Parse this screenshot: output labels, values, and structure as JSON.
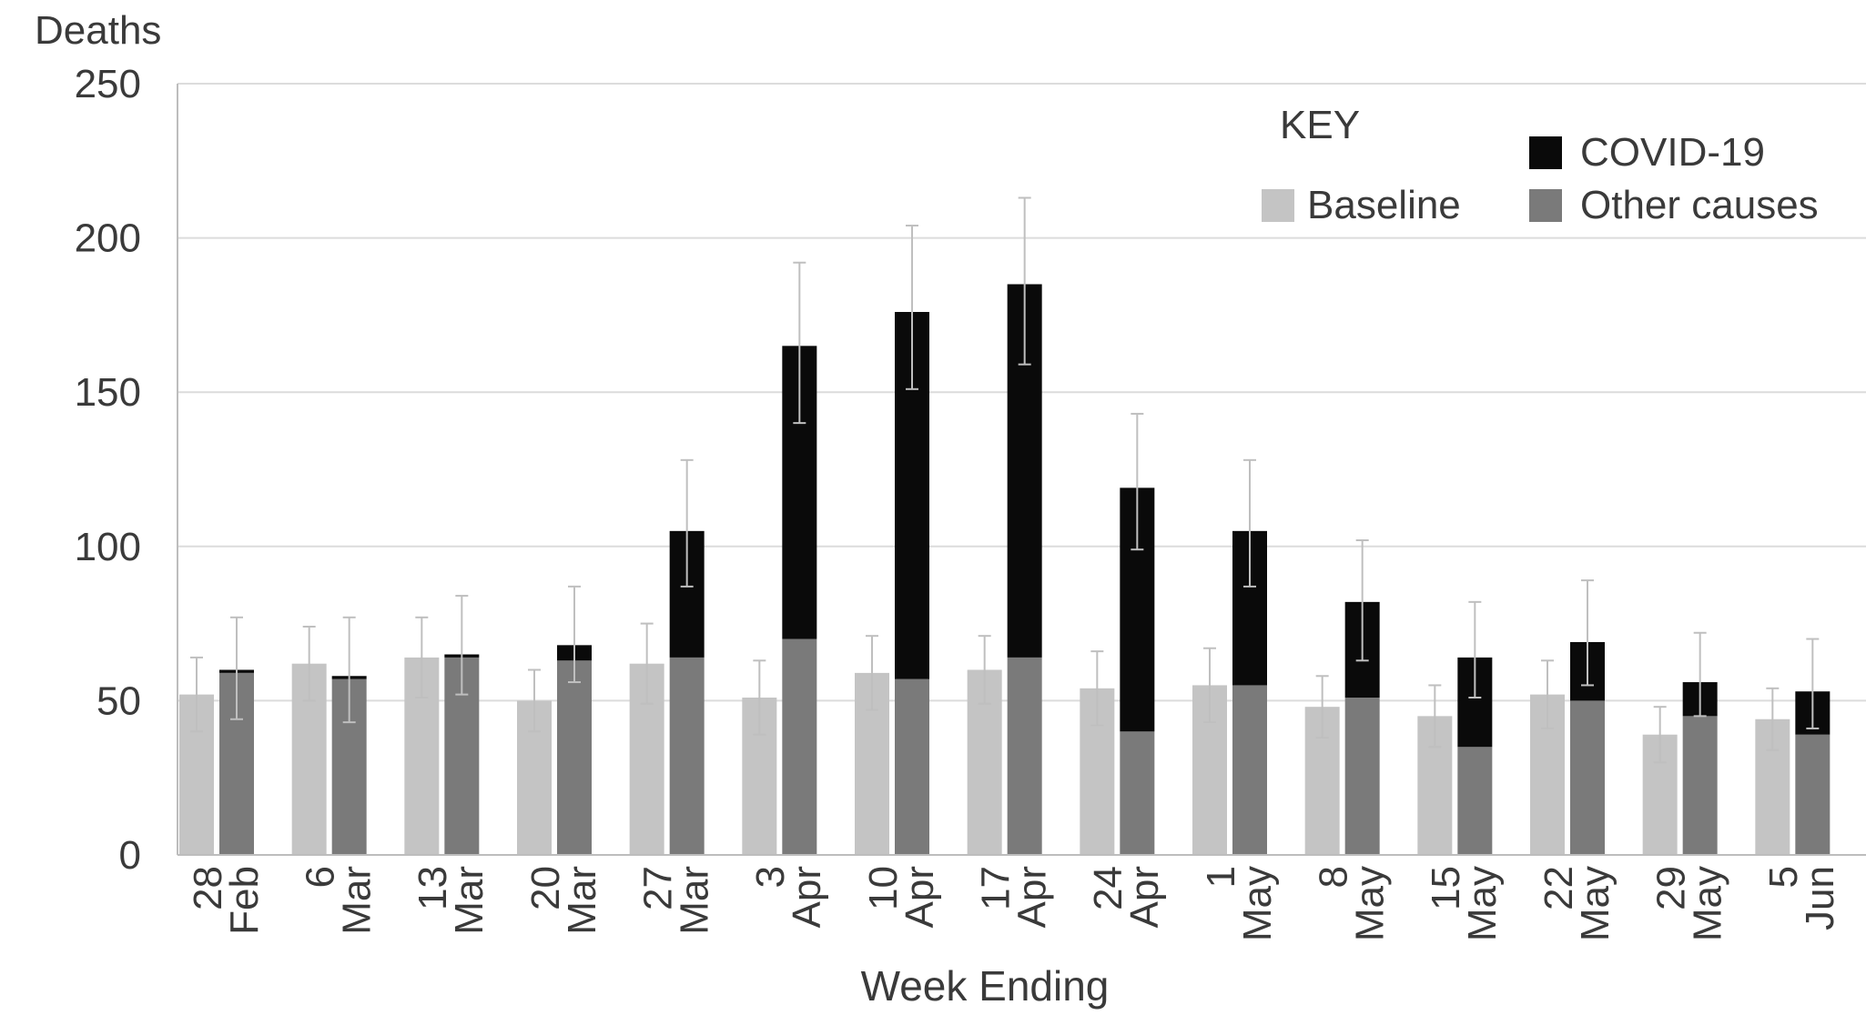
{
  "chart_data": {
    "type": "bar",
    "title": "",
    "ylabel": "Deaths",
    "xlabel": "Week Ending",
    "ylim": [
      0,
      250
    ],
    "yticks": [
      0,
      50,
      100,
      150,
      200,
      250
    ],
    "grid": true,
    "legend_position": "top-right",
    "legend": {
      "title": "KEY",
      "items": [
        "COVID-19",
        "Baseline",
        "Other causes"
      ]
    },
    "categories": [
      [
        "28",
        "Feb"
      ],
      [
        "6",
        "Mar"
      ],
      [
        "13",
        "Mar"
      ],
      [
        "20",
        "Mar"
      ],
      [
        "27",
        "Mar"
      ],
      [
        "3",
        "Apr"
      ],
      [
        "10",
        "Apr"
      ],
      [
        "17",
        "Apr"
      ],
      [
        "24",
        "Apr"
      ],
      [
        "1",
        "May"
      ],
      [
        "8",
        "May"
      ],
      [
        "15",
        "May"
      ],
      [
        "22",
        "May"
      ],
      [
        "29",
        "May"
      ],
      [
        "5",
        "Jun"
      ]
    ],
    "series": [
      {
        "name": "Baseline",
        "color": "#c4c4c4",
        "values": [
          52,
          62,
          64,
          50,
          62,
          51,
          59,
          60,
          54,
          55,
          48,
          45,
          52,
          39,
          44
        ],
        "error_high": [
          64,
          74,
          77,
          60,
          75,
          63,
          71,
          71,
          66,
          67,
          58,
          55,
          63,
          48,
          54
        ]
      },
      {
        "name": "Other causes",
        "color": "#7a7a7a",
        "values": [
          59,
          57,
          64,
          63,
          64,
          70,
          57,
          64,
          40,
          55,
          51,
          35,
          50,
          45,
          39
        ]
      },
      {
        "name": "COVID-19",
        "color": "#0a0a0a",
        "values": [
          1,
          1,
          1,
          5,
          41,
          95,
          119,
          121,
          79,
          50,
          31,
          29,
          19,
          11,
          14
        ],
        "error_high": [
          77,
          77,
          84,
          87,
          128,
          192,
          204,
          213,
          143,
          128,
          102,
          82,
          89,
          72,
          70
        ],
        "error_low": [
          44,
          43,
          52,
          56,
          87,
          140,
          151,
          159,
          99,
          87,
          63,
          51,
          55,
          45,
          41
        ]
      }
    ]
  }
}
